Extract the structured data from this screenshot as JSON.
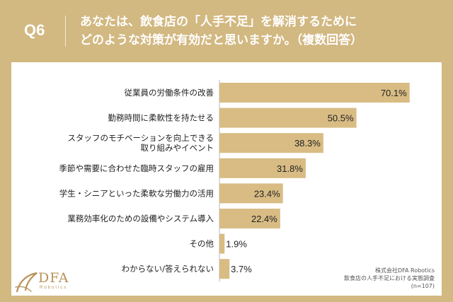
{
  "header": {
    "question_label": "Q6",
    "question_line1": "あなたは、飲食店の「人手不足」を解消するために",
    "question_line2": "どのような対策が有効だと思いますか。（複数回答）"
  },
  "chart_data": {
    "type": "bar",
    "orientation": "horizontal",
    "categories": [
      [
        "従業員の労働条件の改善"
      ],
      [
        "勤務時間に柔軟性を持たせる"
      ],
      [
        "スタッフのモチベーションを向上できる",
        "取り組みやイベント"
      ],
      [
        "季節や需要に合わせた臨時スタッフの雇用"
      ],
      [
        "学生・シニアといった柔軟な労働力の活用"
      ],
      [
        "業務効率化のための設備やシステム導入"
      ],
      [
        "その他"
      ],
      [
        "わからない/答えられない"
      ]
    ],
    "values": [
      70.1,
      50.5,
      38.3,
      31.8,
      23.4,
      22.4,
      1.9,
      3.7
    ],
    "value_labels": [
      "70.1%",
      "50.5%",
      "38.3%",
      "31.8%",
      "23.4%",
      "22.4%",
      "1.9%",
      "3.7%"
    ],
    "xlim": [
      0,
      72
    ],
    "grid": false,
    "bar_color": "#d8bc84"
  },
  "source": {
    "line1": "株式会社DFA Robotics",
    "line2": "飲食店の人手不足における実態調査",
    "line3": "(n=107)"
  },
  "logo": {
    "text": "DFA",
    "sub": "Robotics"
  },
  "colors": {
    "background": "#d2b881",
    "bar": "#d8bc84",
    "panel": "#ffffff",
    "text": "#222222"
  }
}
